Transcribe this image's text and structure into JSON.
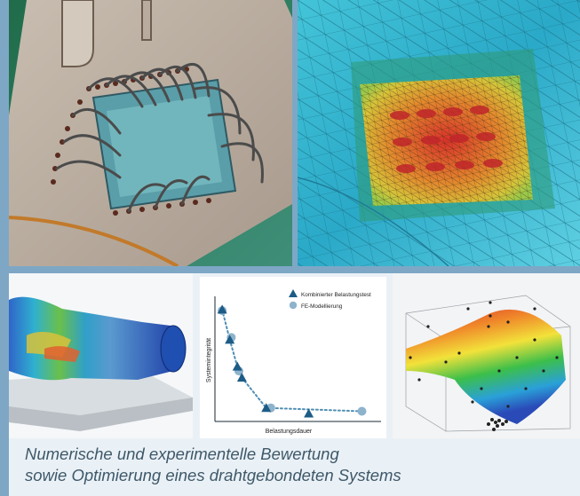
{
  "chart_data": {
    "type": "scatter",
    "title": "",
    "xlabel": "Belastungsdauer",
    "ylabel": "Systemintegrität",
    "legend_position": "top-right",
    "series": [
      {
        "name": "Kombinierter Belastungstest",
        "marker": "triangle",
        "color": "#1d5c86",
        "x": [
          0.03,
          0.08,
          0.13,
          0.16,
          0.32,
          0.6
        ],
        "y": [
          0.93,
          0.66,
          0.42,
          0.32,
          0.05,
          0.0
        ]
      },
      {
        "name": "FE-Modellierung",
        "marker": "circle",
        "color": "#8eb3cc",
        "x": [
          0.03,
          0.09,
          0.14,
          0.35,
          0.95
        ],
        "y": [
          0.92,
          0.68,
          0.38,
          0.05,
          0.02
        ]
      }
    ],
    "trend": {
      "style": "dotted",
      "color": "#4f8fb4",
      "x": [
        0.03,
        0.08,
        0.13,
        0.16,
        0.32,
        0.95
      ],
      "y": [
        0.93,
        0.66,
        0.42,
        0.32,
        0.05,
        0.02
      ]
    },
    "xlim": [
      0,
      1
    ],
    "ylim": [
      0,
      1
    ],
    "grid": false
  },
  "caption": {
    "line1": "Numerische und experimentelle Bewertung",
    "line2": "sowie Optimierung eines drahtgebondeten Systems"
  },
  "colors": {
    "frame": "#7ea7c6",
    "caption_text": "#3e5869",
    "axis": "#1a2a36"
  }
}
